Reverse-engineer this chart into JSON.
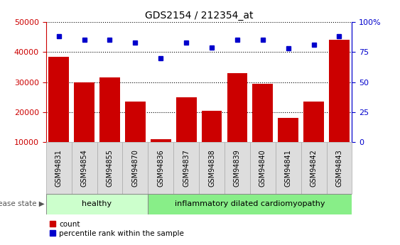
{
  "title": "GDS2154 / 212354_at",
  "samples": [
    "GSM94831",
    "GSM94854",
    "GSM94855",
    "GSM94870",
    "GSM94836",
    "GSM94837",
    "GSM94838",
    "GSM94839",
    "GSM94840",
    "GSM94841",
    "GSM94842",
    "GSM94843"
  ],
  "counts": [
    38500,
    30000,
    31500,
    23500,
    11000,
    25000,
    20500,
    33000,
    29500,
    18000,
    23500,
    44000
  ],
  "percentiles": [
    88,
    85,
    85,
    83,
    70,
    83,
    79,
    85,
    85,
    78,
    81,
    88
  ],
  "healthy_count": 4,
  "disease_label_healthy": "healthy",
  "disease_label_idc": "inflammatory dilated cardiomyopathy",
  "disease_state_label": "disease state",
  "bar_color": "#cc0000",
  "dot_color": "#0000cc",
  "left_axis_color": "#cc0000",
  "right_axis_color": "#0000cc",
  "ylim_left": [
    10000,
    50000
  ],
  "ylim_right": [
    0,
    100
  ],
  "yticks_left": [
    10000,
    20000,
    30000,
    40000,
    50000
  ],
  "yticks_right": [
    0,
    25,
    50,
    75,
    100
  ],
  "legend_count": "count",
  "legend_percentile": "percentile rank within the sample",
  "healthy_bg": "#ccffcc",
  "idc_bg": "#88ee88",
  "tick_label_bg": "#dddddd",
  "bar_width": 0.8
}
